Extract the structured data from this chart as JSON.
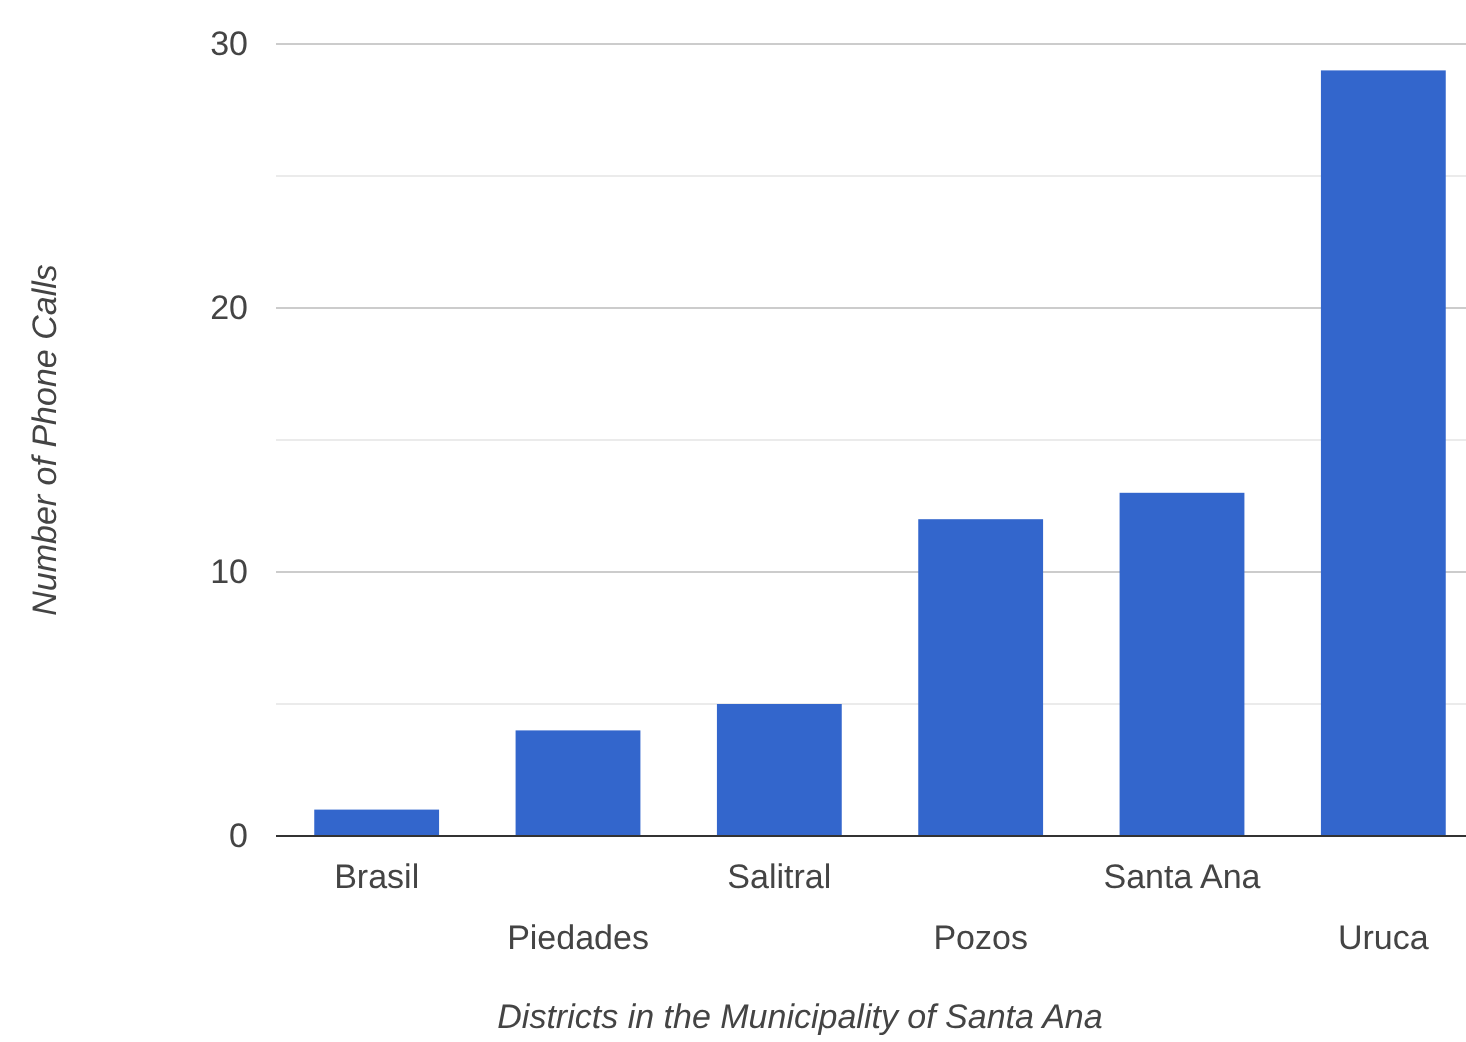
{
  "chart_data": {
    "type": "bar",
    "xlabel": "Districts in the Municipality of Santa Ana",
    "ylabel": "Number of Phone Calls",
    "categories": [
      "Brasil",
      "Piedades",
      "Salitral",
      "Pozos",
      "Santa Ana",
      "Uruca"
    ],
    "values": [
      1,
      4,
      5,
      12,
      13,
      29
    ],
    "color": "#3366cc",
    "ylim": [
      0,
      30
    ],
    "yticks": [
      0,
      {
        "value": 5,
        "label": null
      },
      10,
      {
        "value": 15,
        "label": null
      },
      20,
      {
        "value": 25,
        "label": null
      },
      30
    ],
    "grid": true
  }
}
